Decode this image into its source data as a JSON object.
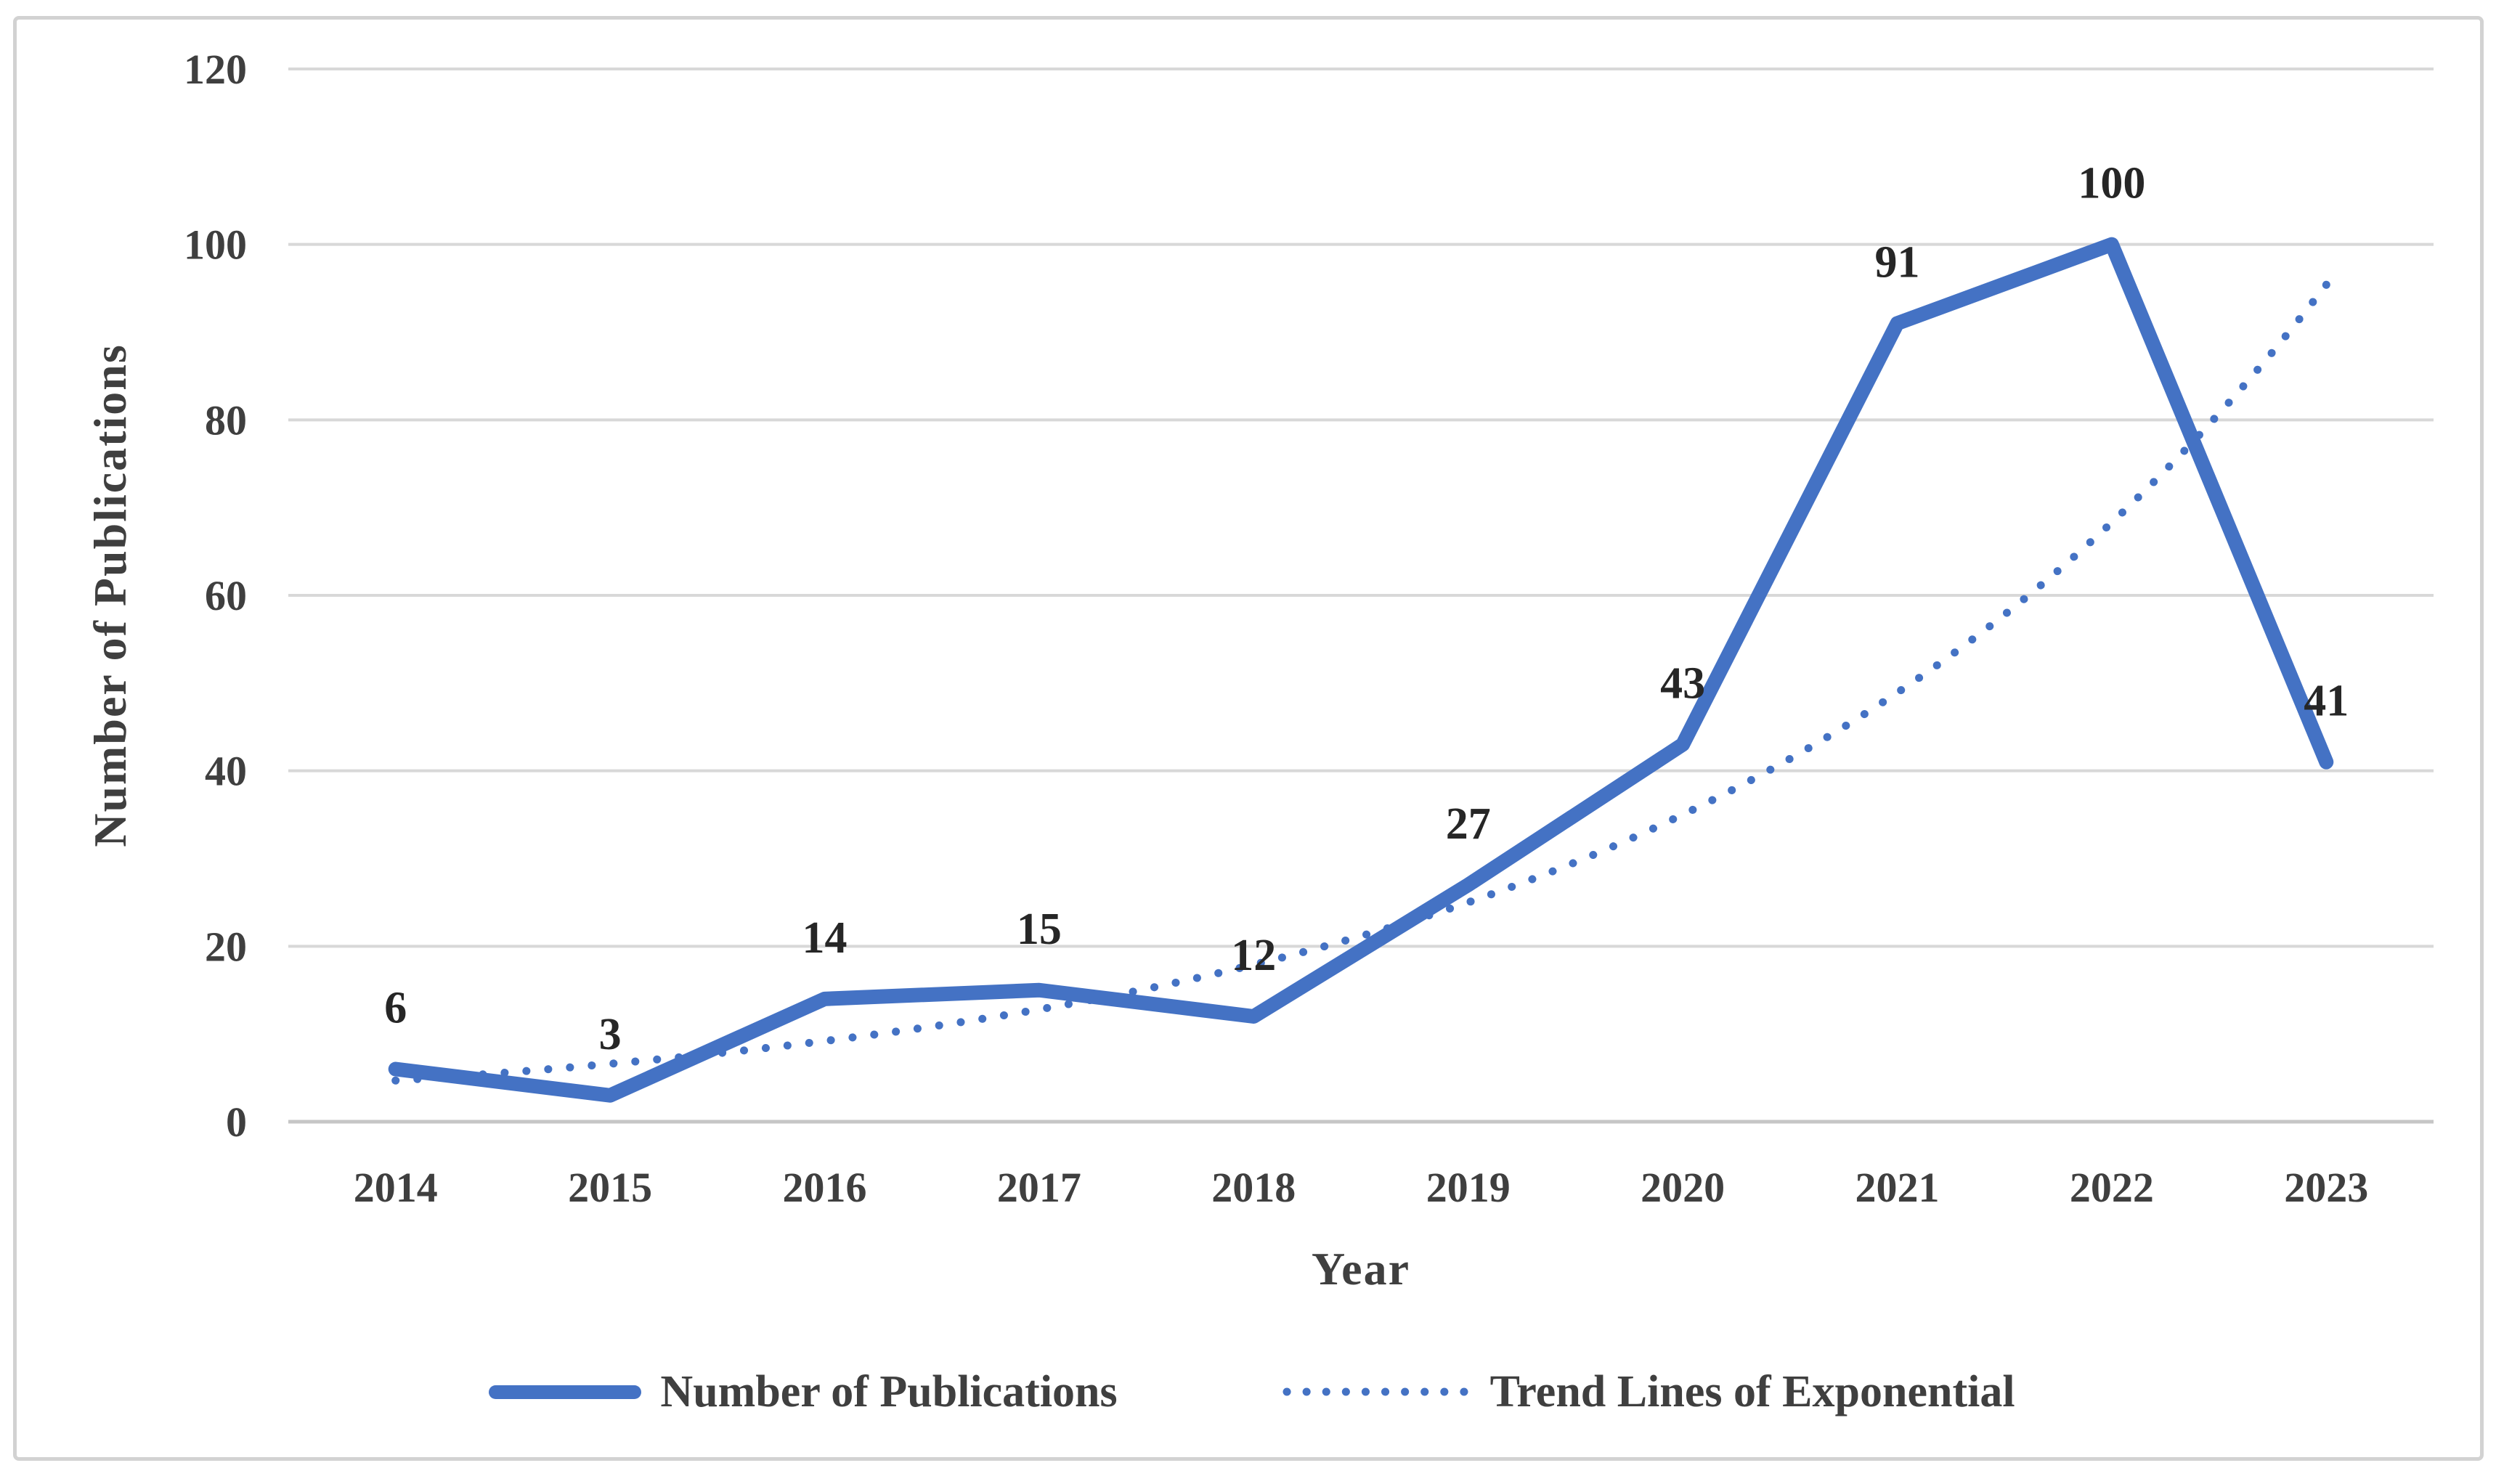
{
  "colors": {
    "accent": "#4472C4",
    "grid": "#d8d8d8",
    "zero_line": "#c6c6c6",
    "tick_text": "#3f3f3f",
    "data_label_text": "#262626",
    "frame_border": "#d2d2d2"
  },
  "chart_data": {
    "type": "line",
    "title": "",
    "xlabel": "Year",
    "ylabel": "Number of Publications",
    "categories": [
      "2014",
      "2015",
      "2016",
      "2017",
      "2018",
      "2019",
      "2020",
      "2021",
      "2022",
      "2023"
    ],
    "series": [
      {
        "name": "Number of Publications",
        "style": "solid",
        "values": [
          6,
          3,
          14,
          15,
          12,
          27,
          43,
          91,
          100,
          41
        ],
        "data_labels": true
      },
      {
        "name": "Trend Lines of Exponential",
        "style": "dotted",
        "values": [
          4.7,
          6.6,
          9.2,
          12.8,
          17.9,
          25.0,
          35.0,
          48.9,
          68.3,
          95.4
        ],
        "data_labels": false
      }
    ],
    "ylim": [
      0,
      120
    ],
    "yticks": [
      0,
      20,
      40,
      60,
      80,
      100,
      120
    ],
    "grid": true,
    "legend_position": "bottom"
  }
}
